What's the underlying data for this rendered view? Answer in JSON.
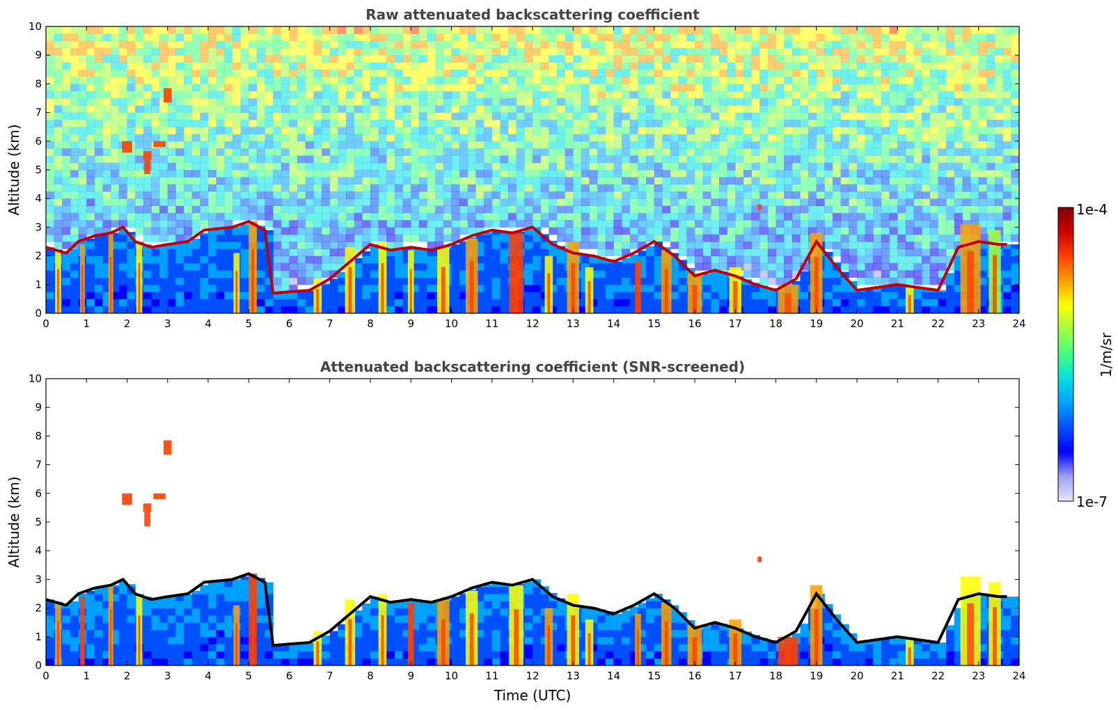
{
  "chart_data": [
    {
      "type": "heatmap",
      "title": "Raw attenuated backscattering coefficient",
      "xlabel": "",
      "ylabel": "Altitude (km)",
      "xlim": [
        0,
        24
      ],
      "ylim": [
        0,
        10
      ],
      "xticks": [
        "0",
        "1",
        "2",
        "3",
        "4",
        "5",
        "6",
        "7",
        "8",
        "9",
        "10",
        "11",
        "12",
        "13",
        "14",
        "15",
        "16",
        "17",
        "18",
        "19",
        "20",
        "21",
        "22",
        "23",
        "24"
      ],
      "yticks": [
        "0",
        "1",
        "2",
        "3",
        "4",
        "5",
        "6",
        "7",
        "8",
        "9",
        "10"
      ],
      "screened": false,
      "boundary_layer_top_km": [
        [
          0.0,
          2.3
        ],
        [
          0.5,
          2.1
        ],
        [
          0.8,
          2.5
        ],
        [
          1.2,
          2.7
        ],
        [
          1.6,
          2.8
        ],
        [
          1.9,
          3.0
        ],
        [
          2.2,
          2.5
        ],
        [
          2.6,
          2.3
        ],
        [
          3.0,
          2.4
        ],
        [
          3.5,
          2.5
        ],
        [
          3.9,
          2.9
        ],
        [
          4.6,
          3.0
        ],
        [
          5.0,
          3.2
        ],
        [
          5.4,
          2.9
        ],
        [
          5.6,
          0.7
        ],
        [
          6.5,
          0.8
        ],
        [
          7.0,
          1.2
        ],
        [
          7.5,
          1.8
        ],
        [
          8.0,
          2.4
        ],
        [
          8.5,
          2.2
        ],
        [
          9.0,
          2.3
        ],
        [
          9.5,
          2.2
        ],
        [
          10.0,
          2.4
        ],
        [
          10.5,
          2.7
        ],
        [
          11.0,
          2.9
        ],
        [
          11.5,
          2.8
        ],
        [
          12.0,
          3.0
        ],
        [
          12.5,
          2.4
        ],
        [
          13.0,
          2.1
        ],
        [
          13.5,
          2.0
        ],
        [
          14.0,
          1.8
        ],
        [
          14.5,
          2.1
        ],
        [
          15.0,
          2.5
        ],
        [
          15.5,
          2.0
        ],
        [
          16.0,
          1.3
        ],
        [
          16.5,
          1.5
        ],
        [
          17.0,
          1.3
        ],
        [
          17.5,
          1.0
        ],
        [
          18.0,
          0.8
        ],
        [
          18.5,
          1.2
        ],
        [
          19.0,
          2.5
        ],
        [
          19.5,
          1.6
        ],
        [
          20.0,
          0.8
        ],
        [
          20.5,
          0.9
        ],
        [
          21.0,
          1.0
        ],
        [
          21.5,
          0.9
        ],
        [
          22.0,
          0.8
        ],
        [
          22.5,
          2.3
        ],
        [
          23.0,
          2.5
        ],
        [
          23.5,
          2.4
        ],
        [
          23.8,
          2.4
        ]
      ],
      "plumes": [
        {
          "x": 0.3,
          "w": 0.15,
          "top": 2.2
        },
        {
          "x": 0.9,
          "w": 0.12,
          "top": 2.4
        },
        {
          "x": 1.6,
          "w": 0.12,
          "top": 2.8
        },
        {
          "x": 2.3,
          "w": 0.15,
          "top": 2.5
        },
        {
          "x": 4.7,
          "w": 0.15,
          "top": 2.1
        },
        {
          "x": 5.1,
          "w": 0.2,
          "top": 3.2
        },
        {
          "x": 6.7,
          "w": 0.2,
          "top": 1.2
        },
        {
          "x": 7.5,
          "w": 0.25,
          "top": 2.3
        },
        {
          "x": 8.3,
          "w": 0.2,
          "top": 2.5
        },
        {
          "x": 9.0,
          "w": 0.15,
          "top": 2.2
        },
        {
          "x": 9.8,
          "w": 0.3,
          "top": 2.3
        },
        {
          "x": 10.5,
          "w": 0.3,
          "top": 2.6
        },
        {
          "x": 11.6,
          "w": 0.35,
          "top": 2.8
        },
        {
          "x": 12.4,
          "w": 0.2,
          "top": 2.0
        },
        {
          "x": 13.0,
          "w": 0.3,
          "top": 2.5
        },
        {
          "x": 13.4,
          "w": 0.2,
          "top": 1.6
        },
        {
          "x": 14.6,
          "w": 0.15,
          "top": 1.8
        },
        {
          "x": 15.3,
          "w": 0.25,
          "top": 2.2
        },
        {
          "x": 16.0,
          "w": 0.35,
          "top": 1.4
        },
        {
          "x": 17.0,
          "w": 0.3,
          "top": 1.6
        },
        {
          "x": 18.3,
          "w": 0.5,
          "top": 1.0
        },
        {
          "x": 19.0,
          "w": 0.3,
          "top": 2.8
        },
        {
          "x": 21.3,
          "w": 0.2,
          "top": 0.9
        },
        {
          "x": 22.8,
          "w": 0.5,
          "top": 3.1
        },
        {
          "x": 23.4,
          "w": 0.3,
          "top": 2.9
        }
      ],
      "clouds": [
        {
          "x": 2.0,
          "y": 5.8,
          "w": 0.25,
          "h": 0.4
        },
        {
          "x": 2.5,
          "y": 5.5,
          "w": 0.2,
          "h": 0.3
        },
        {
          "x": 2.8,
          "y": 5.9,
          "w": 0.3,
          "h": 0.2
        },
        {
          "x": 3.0,
          "y": 7.6,
          "w": 0.2,
          "h": 0.5
        },
        {
          "x": 2.5,
          "y": 5.1,
          "w": 0.15,
          "h": 0.5
        },
        {
          "x": 17.6,
          "y": 3.7,
          "w": 0.1,
          "h": 0.2
        }
      ]
    },
    {
      "type": "heatmap",
      "title": "Attenuated backscattering coefficient (SNR-screened)",
      "xlabel": "Time (UTC)",
      "ylabel": "Altitude (km)",
      "xlim": [
        0,
        24
      ],
      "ylim": [
        0,
        10
      ],
      "xticks": [
        "0",
        "1",
        "2",
        "3",
        "4",
        "5",
        "6",
        "7",
        "8",
        "9",
        "10",
        "11",
        "12",
        "13",
        "14",
        "15",
        "16",
        "17",
        "18",
        "19",
        "20",
        "21",
        "22",
        "23",
        "24"
      ],
      "yticks": [
        "0",
        "1",
        "2",
        "3",
        "4",
        "5",
        "6",
        "7",
        "8",
        "9",
        "10"
      ],
      "screened": true
    }
  ],
  "colorbar": {
    "max_label": "1e-4",
    "min_label": "1e-7",
    "unit_label": "1/m/sr",
    "scale": "log",
    "range": [
      1e-07,
      0.0001
    ],
    "colors": [
      "#e8e8f8",
      "#a0a0f0",
      "#0000ff",
      "#0050ff",
      "#00a0ff",
      "#00e0e0",
      "#40ff80",
      "#a0ff40",
      "#ffff00",
      "#ffa000",
      "#ff4000",
      "#d00000",
      "#800000"
    ]
  }
}
